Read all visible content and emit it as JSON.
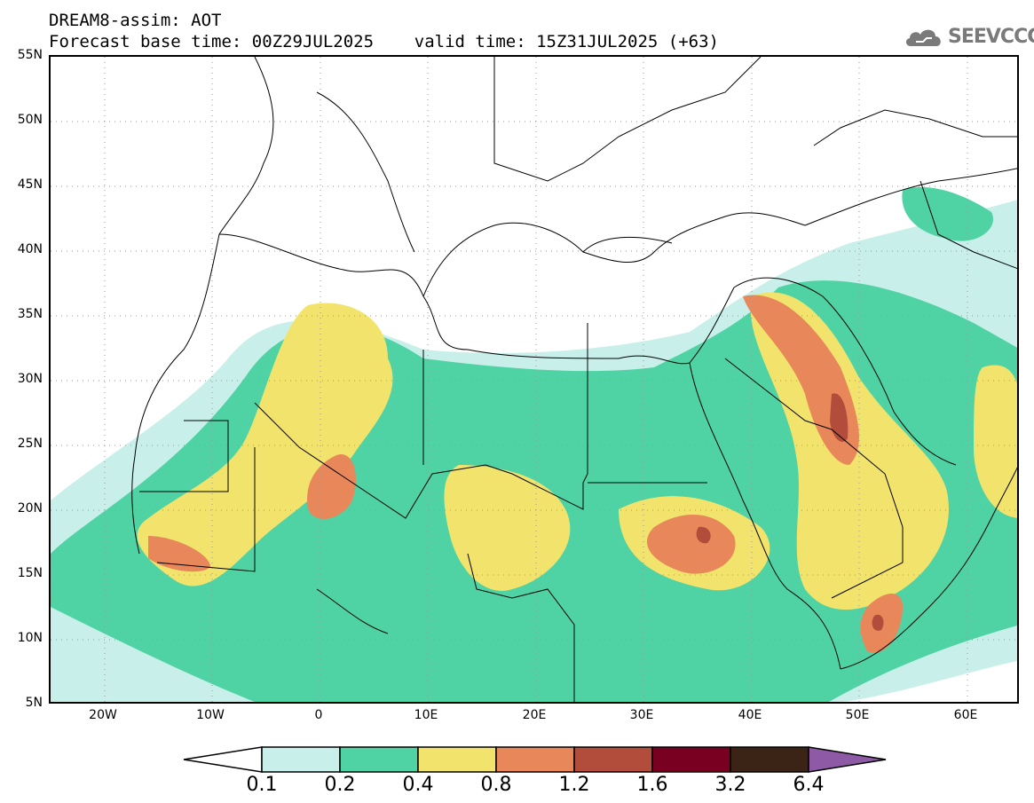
{
  "header": {
    "line1": "DREAM8-assim: AOT",
    "line2": "Forecast base time: 00Z29JUL2025    valid time: 15Z31JUL2025 (+63)"
  },
  "logo": {
    "text": "SEEVCCC",
    "icon": "cloud-icon"
  },
  "axes": {
    "lat_labels": [
      "55N",
      "50N",
      "45N",
      "40N",
      "35N",
      "30N",
      "25N",
      "20N",
      "15N",
      "10N",
      "5N"
    ],
    "lon_labels": [
      "20W",
      "10W",
      "0",
      "10E",
      "20E",
      "30E",
      "40E",
      "50E",
      "60E"
    ],
    "lat_range": [
      5,
      55
    ],
    "lon_range": [
      -25,
      65
    ]
  },
  "colorbar": {
    "labels": [
      "0.1",
      "0.2",
      "0.4",
      "0.8",
      "1.2",
      "1.6",
      "3.2",
      "6.4"
    ],
    "colors": [
      "#ffffff",
      "#c8efe9",
      "#4fd3a4",
      "#f2e36c",
      "#e8875a",
      "#b24c3b",
      "#7a0022",
      "#3b2415",
      "#8e5aa6"
    ]
  }
}
